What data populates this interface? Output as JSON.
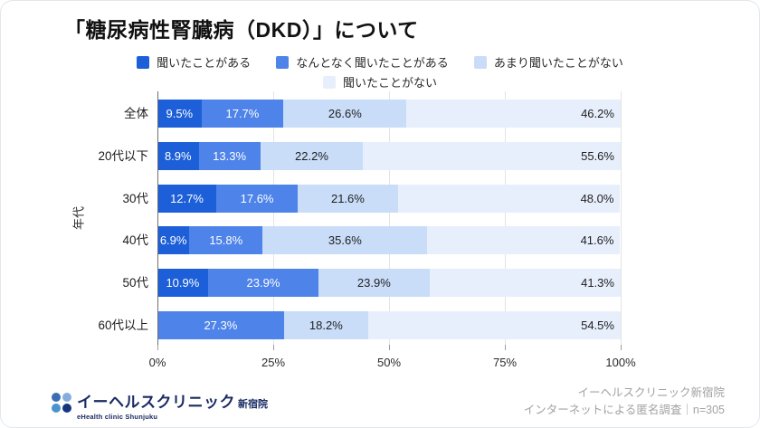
{
  "title": "「糖尿病性腎臓病（DKD）」について",
  "legend": {
    "rows": [
      [
        0,
        1,
        2
      ],
      [
        3
      ]
    ]
  },
  "chart_data": {
    "type": "bar",
    "orientation": "horizontal-stacked",
    "title": "「糖尿病性腎臓病（DKD）」について",
    "ylabel": "年代",
    "xlim": [
      0,
      100
    ],
    "grid": true,
    "ticks": [
      0,
      25,
      50,
      75,
      100
    ],
    "tick_labels": [
      "0%",
      "25%",
      "50%",
      "75%",
      "100%"
    ],
    "categories": [
      "全体",
      "20代以下",
      "30代",
      "40代",
      "50代",
      "60代以上"
    ],
    "series": [
      {
        "name": "聞いたことがある",
        "color": "#1c5fd8",
        "text_color": "#ffffff",
        "values": [
          9.5,
          8.9,
          12.7,
          6.9,
          10.9,
          0
        ]
      },
      {
        "name": "なんとなく聞いたことがある",
        "color": "#4e83e9",
        "text_color": "#ffffff",
        "values": [
          17.7,
          13.3,
          17.6,
          15.8,
          23.9,
          27.3
        ]
      },
      {
        "name": "あまり聞いたことがない",
        "color": "#c9dcf8",
        "text_color": "#1f1f1f",
        "values": [
          26.6,
          22.2,
          21.6,
          35.6,
          23.9,
          18.2
        ]
      },
      {
        "name": "聞いたことがない",
        "color": "#e8effc",
        "text_color": "#1f1f1f",
        "values": [
          46.2,
          55.6,
          48.0,
          41.6,
          41.3,
          54.5
        ]
      }
    ],
    "value_suffix": "%",
    "legend_position": "top"
  },
  "footer": {
    "logo": {
      "name_jp": "イーヘルスクリニック",
      "branch": "新宿院",
      "name_en": "eHealth clinic Shunjuku",
      "dot_colors": [
        "#3a6db3",
        "#85aede",
        "#4b93cc",
        "#16357f"
      ]
    },
    "note_line1": "イーヘルスクリニック新宿院",
    "note_line2": "インターネットによる匿名調査｜n=305"
  }
}
